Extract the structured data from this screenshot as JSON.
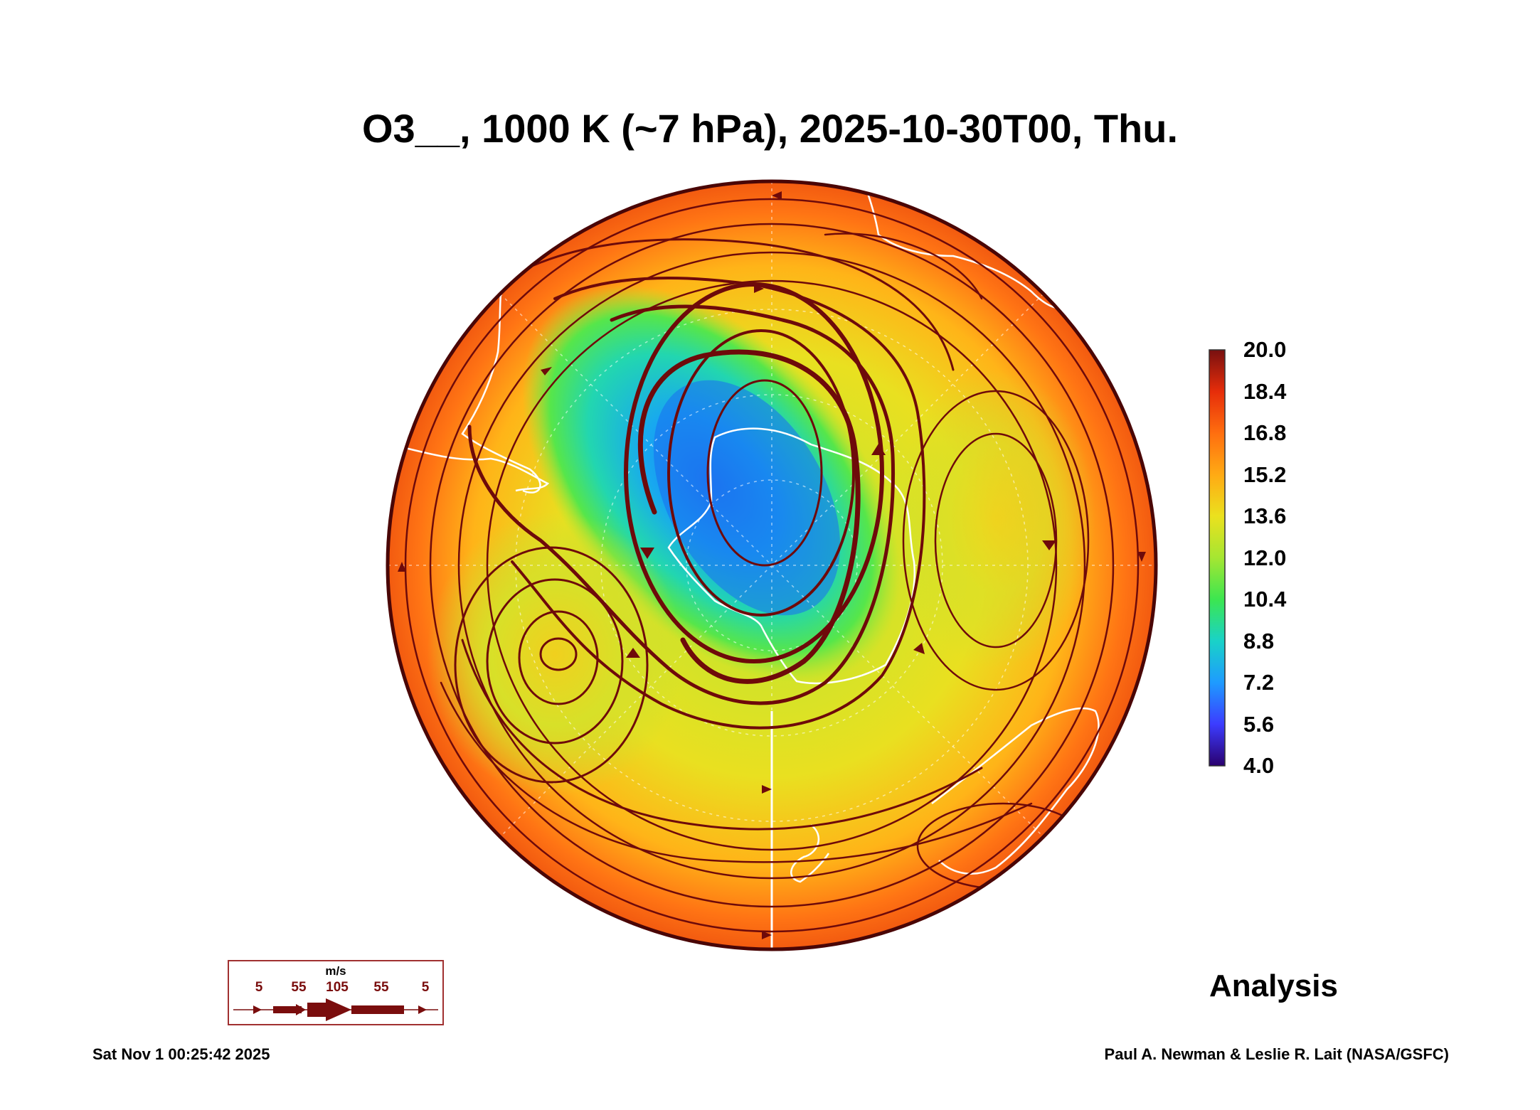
{
  "title": "O3__, 1000 K (~7 hPa), 2025-10-30T00, Thu.",
  "colorbar": {
    "labels": [
      "20.0",
      "18.4",
      "16.8",
      "15.2",
      "13.6",
      "12.0",
      "10.4",
      "8.8",
      "7.2",
      "5.6",
      "4.0"
    ],
    "min": 4.0,
    "max": 20.0,
    "colors": [
      "#2a006e",
      "#3c3cff",
      "#1e9bff",
      "#19d2c8",
      "#3ce650",
      "#a5e632",
      "#ebe11e",
      "#ffaa14",
      "#ff6e0f",
      "#e62d0a",
      "#781010"
    ]
  },
  "wind_legend": {
    "unit": "m/s",
    "speeds": [
      "5",
      "55",
      "105",
      "55",
      "5"
    ]
  },
  "label_analysis": "Analysis",
  "timestamp": "Sat Nov  1 00:25:42 2025",
  "credit": "Paul A. Newman & Leslie R. Lait (NASA/GSFC)",
  "colors": {
    "streamline": "#6e0a0a",
    "coastline": "#ffffff",
    "rim": "#4a0606"
  }
}
